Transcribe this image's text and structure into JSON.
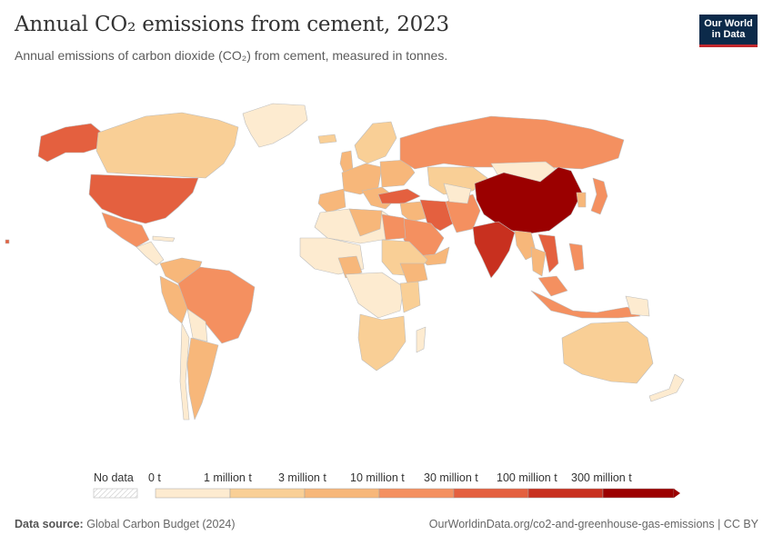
{
  "header": {
    "title": "Annual CO₂ emissions from cement, 2023",
    "subtitle": "Annual emissions of carbon dioxide (CO₂) from cement, measured in tonnes."
  },
  "logo": {
    "line1": "Our World",
    "line2": "in Data"
  },
  "colors": {
    "ocean": "#ffffff",
    "border": "#bdbdbd",
    "bins": [
      "#fdebd0",
      "#f9cf96",
      "#f7b77a",
      "#f49060",
      "#e4603f",
      "#c8301f",
      "#9b0000"
    ]
  },
  "legend": {
    "no_data": "No data",
    "labels": [
      "0 t",
      "1 million t",
      "3 million t",
      "10 million t",
      "30 million t",
      "100 million t",
      "300 million t"
    ]
  },
  "chart_data": {
    "type": "choropleth",
    "year": 2023,
    "unit": "tonnes",
    "bins": [
      {
        "min": 0,
        "max": 1000000
      },
      {
        "min": 1000000,
        "max": 3000000
      },
      {
        "min": 3000000,
        "max": 10000000
      },
      {
        "min": 10000000,
        "max": 30000000
      },
      {
        "min": 30000000,
        "max": 100000000
      },
      {
        "min": 100000000,
        "max": 300000000
      },
      {
        "min": 300000000,
        "max": null
      }
    ],
    "regions": [
      {
        "name": "China",
        "bin": 6
      },
      {
        "name": "India",
        "bin": 5
      },
      {
        "name": "United States",
        "bin": 4
      },
      {
        "name": "Turkey",
        "bin": 4
      },
      {
        "name": "Iran",
        "bin": 4
      },
      {
        "name": "Vietnam",
        "bin": 4
      },
      {
        "name": "Russia",
        "bin": 3
      },
      {
        "name": "Brazil",
        "bin": 3
      },
      {
        "name": "Mexico",
        "bin": 3
      },
      {
        "name": "Indonesia",
        "bin": 3
      },
      {
        "name": "Saudi Arabia",
        "bin": 3
      },
      {
        "name": "Egypt",
        "bin": 3
      },
      {
        "name": "Japan",
        "bin": 3
      },
      {
        "name": "Nigeria",
        "bin": 2
      },
      {
        "name": "Canada",
        "bin": 1
      },
      {
        "name": "Australia",
        "bin": 1
      },
      {
        "name": "Greenland",
        "bin": 0
      }
    ]
  },
  "footer": {
    "source_label": "Data source:",
    "source_value": "Global Carbon Budget (2024)",
    "url": "OurWorldinData.org/co2-and-greenhouse-gas-emissions | CC BY"
  }
}
